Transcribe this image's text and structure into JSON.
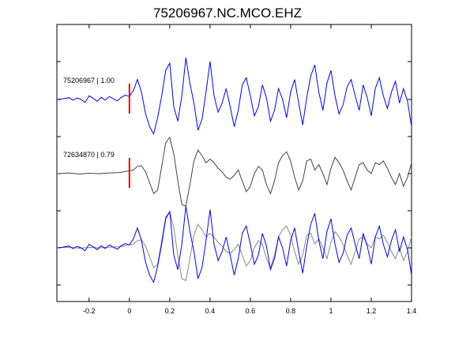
{
  "chart_data": {
    "type": "line",
    "title": "75206967.NC.MCO.EHZ",
    "xlabel": "",
    "ylabel": "",
    "xlim": [
      -0.36,
      1.4
    ],
    "x_ticks": [
      -0.2,
      0,
      0.2,
      0.4,
      0.6,
      0.8,
      1,
      1.2,
      1.4
    ],
    "x_tick_labels": [
      "-0.2",
      "0",
      "0.2",
      "0.4",
      "0.6",
      "0.8",
      "1",
      "1.2",
      "1.4"
    ],
    "grid": false,
    "pick_time": 0,
    "colors": {
      "blue": "#0000ff",
      "gray": "#444444",
      "pick": "#ff0000",
      "axis": "#000000"
    },
    "traces": [
      {
        "label": "75206967 | 1.00",
        "color": "#0000ff",
        "x": [
          -0.36,
          -0.33,
          -0.3,
          -0.28,
          -0.26,
          -0.24,
          -0.22,
          -0.2,
          -0.18,
          -0.16,
          -0.14,
          -0.12,
          -0.1,
          -0.08,
          -0.06,
          -0.04,
          -0.02,
          0,
          0.02,
          0.04,
          0.06,
          0.08,
          0.1,
          0.12,
          0.14,
          0.16,
          0.18,
          0.2,
          0.22,
          0.24,
          0.26,
          0.28,
          0.3,
          0.32,
          0.34,
          0.36,
          0.38,
          0.4,
          0.42,
          0.44,
          0.46,
          0.48,
          0.5,
          0.52,
          0.54,
          0.56,
          0.58,
          0.6,
          0.62,
          0.64,
          0.66,
          0.68,
          0.7,
          0.72,
          0.74,
          0.76,
          0.78,
          0.8,
          0.82,
          0.84,
          0.86,
          0.88,
          0.9,
          0.92,
          0.94,
          0.96,
          0.98,
          1,
          1.02,
          1.04,
          1.06,
          1.08,
          1.1,
          1.12,
          1.14,
          1.16,
          1.18,
          1.2,
          1.22,
          1.24,
          1.26,
          1.28,
          1.3,
          1.32,
          1.34,
          1.36,
          1.38,
          1.4
        ],
        "y": [
          0,
          0.02,
          0.05,
          -0.02,
          0.04,
          0,
          -0.08,
          0.1,
          0.03,
          -0.05,
          0.06,
          -0.02,
          0.08,
          0.02,
          -0.04,
          0.06,
          0.12,
          0.08,
          0.25,
          0.55,
          0.2,
          -0.4,
          -0.75,
          -0.95,
          -0.5,
          0.1,
          0.8,
          1.0,
          -0.2,
          -0.6,
          0.1,
          1.15,
          0.45,
          -0.1,
          -0.85,
          -0.55,
          0.2,
          1.05,
          0.1,
          -0.35,
          -0.1,
          0.3,
          -0.2,
          -0.75,
          -0.3,
          0.4,
          0.6,
          0.1,
          -0.45,
          -0.2,
          0.4,
          0.05,
          -0.6,
          -0.3,
          0.3,
          0.0,
          -0.5,
          0.2,
          0.55,
          -0.1,
          -0.7,
          0.05,
          0.65,
          0.95,
          0.2,
          -0.3,
          0.45,
          0.8,
          0.1,
          -0.4,
          -0.15,
          0.35,
          0.55,
          0.1,
          -0.3,
          0.4,
          0.05,
          -0.45,
          0.3,
          0.6,
          0.1,
          -0.25,
          0.2,
          0.5,
          -0.1,
          0.3,
          -0.05,
          -0.75
        ]
      },
      {
        "label": "72634870 | 0.79",
        "color": "#444444",
        "x": [
          -0.36,
          -0.3,
          -0.25,
          -0.2,
          -0.15,
          -0.1,
          -0.05,
          0,
          0.02,
          0.04,
          0.06,
          0.08,
          0.1,
          0.12,
          0.14,
          0.16,
          0.18,
          0.2,
          0.22,
          0.24,
          0.26,
          0.28,
          0.3,
          0.32,
          0.34,
          0.36,
          0.38,
          0.4,
          0.42,
          0.44,
          0.46,
          0.48,
          0.5,
          0.52,
          0.54,
          0.56,
          0.58,
          0.6,
          0.62,
          0.64,
          0.66,
          0.68,
          0.7,
          0.72,
          0.74,
          0.76,
          0.78,
          0.8,
          0.82,
          0.84,
          0.86,
          0.88,
          0.9,
          0.92,
          0.94,
          0.96,
          0.98,
          1,
          1.02,
          1.04,
          1.06,
          1.08,
          1.1,
          1.12,
          1.14,
          1.16,
          1.18,
          1.2,
          1.22,
          1.24,
          1.26,
          1.28,
          1.3,
          1.32,
          1.34,
          1.36,
          1.38,
          1.4
        ],
        "y": [
          0,
          0.02,
          -0.01,
          0.01,
          0,
          0.02,
          0.03,
          0.08,
          0.1,
          0.2,
          0.22,
          0.05,
          -0.25,
          -0.55,
          -0.45,
          0.2,
          0.85,
          1.0,
          0.55,
          -0.2,
          -0.85,
          -0.9,
          -0.3,
          0.35,
          0.65,
          0.5,
          0.3,
          0.4,
          0.3,
          0.15,
          0.05,
          -0.1,
          -0.15,
          -0.05,
          0.1,
          -0.2,
          -0.5,
          -0.35,
          0.0,
          0.2,
          0.1,
          -0.3,
          -0.55,
          -0.2,
          0.3,
          0.5,
          0.6,
          0.35,
          -0.1,
          -0.45,
          -0.2,
          0.35,
          0.4,
          0.1,
          0.25,
          0.0,
          -0.3,
          0.15,
          0.45,
          0.3,
          0.1,
          -0.2,
          -0.45,
          -0.1,
          0.25,
          0.3,
          0.1,
          0.0,
          0.3,
          0.25,
          0.35,
          0.15,
          -0.1,
          -0.3,
          0.0,
          -0.35,
          -0.1,
          0.3
        ]
      },
      {
        "label": "",
        "color": "#0000ff",
        "overlay": true
      }
    ]
  }
}
